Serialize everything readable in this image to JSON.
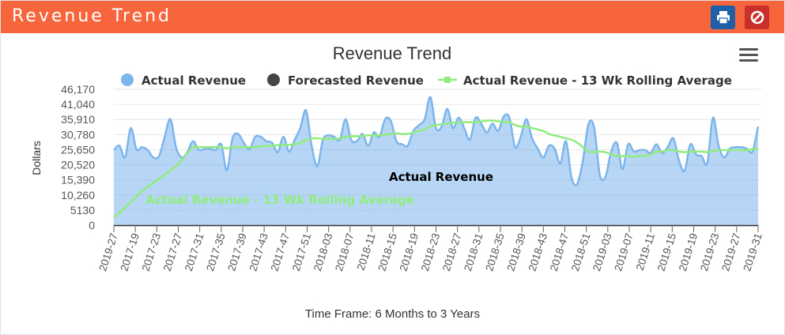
{
  "header": {
    "title": "Revenue Trend"
  },
  "timeframe": "Time Frame: 6 Months to 3 Years",
  "colors": {
    "header": "#f6653c",
    "actual": "#7cb5ec",
    "forecast": "#434348",
    "rolling": "#90ed7d"
  },
  "chart_data": {
    "type": "area",
    "title": "Revenue Trend",
    "ylabel": "Dollars",
    "xlabel": "",
    "ylim": [
      0,
      46170
    ],
    "yticks": [
      0,
      5130,
      10260,
      15390,
      20520,
      25650,
      30780,
      35910,
      41040,
      46170
    ],
    "ytick_labels": [
      "0",
      "5130",
      "10,260",
      "15,390",
      "20,520",
      "25,650",
      "30,780",
      "35,910",
      "41,040",
      "46,170"
    ],
    "legend": [
      "Actual Revenue",
      "Forecasted Revenue",
      "Actual Revenue - 13 Wk Rolling Average"
    ],
    "legend_position": "top",
    "grid": true,
    "x_labels": [
      "2019-27",
      "2017-19",
      "2017-23",
      "2017-27",
      "2017-31",
      "2017-35",
      "2017-39",
      "2017-43",
      "2017-47",
      "2017-51",
      "2018-03",
      "2018-07",
      "2018-11",
      "2018-15",
      "2018-19",
      "2018-23",
      "2018-27",
      "2018-31",
      "2018-35",
      "2018-39",
      "2018-43",
      "2018-47",
      "2018-51",
      "2019-03",
      "2019-07",
      "2019-11",
      "2019-15",
      "2019-19",
      "2019-23",
      "2019-27",
      "2019-31"
    ],
    "series": [
      {
        "name": "Actual Revenue",
        "type": "area",
        "values": [
          25500,
          27000,
          23000,
          33000,
          25800,
          26500,
          25500,
          23000,
          23500,
          30000,
          36000,
          26500,
          23000,
          24800,
          28500,
          25600,
          25800,
          26000,
          25500,
          27500,
          18600,
          29500,
          31000,
          28000,
          25800,
          30000,
          30000,
          28500,
          28000,
          24800,
          30000,
          25000,
          29000,
          33000,
          39000,
          27000,
          20000,
          29000,
          30500,
          30000,
          29000,
          36000,
          29000,
          28500,
          31000,
          27000,
          31500,
          30000,
          36000,
          35500,
          28500,
          27500,
          27000,
          32000,
          34000,
          36000,
          43500,
          33000,
          33500,
          39500,
          33000,
          36500,
          33000,
          29000,
          36500,
          34500,
          31500,
          34500,
          32000,
          37000,
          36500,
          26500,
          30000,
          36000,
          29500,
          26000,
          23000,
          27000,
          26000,
          21000,
          28500,
          16000,
          14000,
          22000,
          34500,
          33000,
          17000,
          16500,
          25000,
          28000,
          19000,
          27500,
          25000,
          25500,
          25500,
          24500,
          27500,
          24500,
          26500,
          29500,
          22000,
          18500,
          27500,
          24000,
          23500,
          21000,
          36500,
          27000,
          23000,
          26000,
          26500,
          26500,
          26000,
          25000,
          33500
        ]
      },
      {
        "name": "Actual Revenue - 13 Wk Rolling Average",
        "type": "line",
        "values": [
          2500,
          4300,
          6100,
          7900,
          9700,
          11500,
          13000,
          14500,
          15800,
          17100,
          18500,
          20000,
          22000,
          24500,
          26500,
          26500,
          26500,
          26500,
          26500,
          26500,
          26200,
          26500,
          26500,
          26500,
          26500,
          26500,
          26700,
          27000,
          27000,
          27200,
          27300,
          27300,
          27500,
          28000,
          28800,
          29500,
          29500,
          29300,
          29300,
          29300,
          29500,
          30000,
          30200,
          30200,
          30300,
          30500,
          30500,
          30500,
          30700,
          31000,
          31200,
          31000,
          31000,
          31500,
          32000,
          32500,
          33500,
          34000,
          34300,
          34500,
          34800,
          34800,
          35000,
          35000,
          35000,
          35200,
          35500,
          35500,
          35300,
          35000,
          35000,
          34000,
          33500,
          33500,
          33000,
          32500,
          32000,
          31000,
          30500,
          30000,
          29500,
          29000,
          28000,
          26500,
          25000,
          24800,
          25000,
          24800,
          24000,
          23500,
          23500,
          23500,
          23200,
          23500,
          23500,
          24000,
          25000,
          25000,
          25500,
          25500,
          25000,
          24800,
          25000,
          25000,
          25000,
          24800,
          25200,
          25500,
          25500,
          25500,
          25500,
          25500,
          25500,
          25800,
          26000
        ]
      }
    ],
    "annotations": [
      {
        "text": "Actual Revenue",
        "series": "Actual Revenue"
      },
      {
        "text": "Actual Revenue - 13 Wk Rolling Average",
        "series": "Actual Revenue - 13 Wk Rolling Average"
      }
    ]
  }
}
